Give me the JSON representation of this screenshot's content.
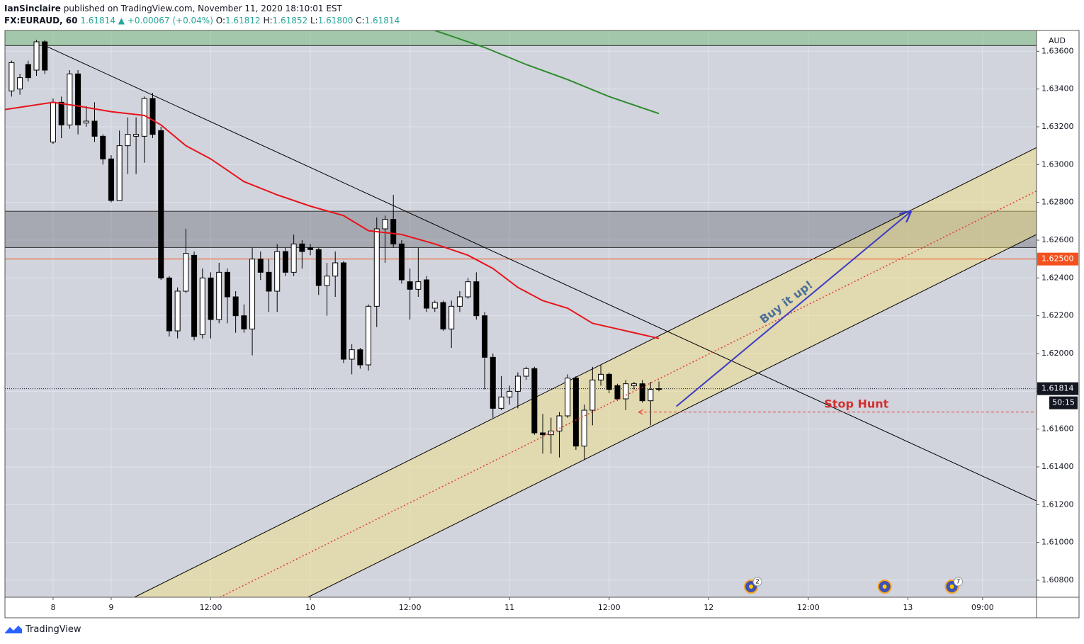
{
  "header": {
    "author": "IanSinclaire",
    "published": "published on TradingView.com, November 11, 2020 18:10:01 EST",
    "symbol": "FX:EURAUD, 60",
    "last": "1.61814",
    "arrow": "▲",
    "change": "+0.00067 (+0.04%)",
    "o_label": "O:",
    "o": "1.61812",
    "h_label": "H:",
    "h": "1.61852",
    "l_label": "L:",
    "l": "1.61800",
    "c_label": "C:",
    "c": "1.61814"
  },
  "chart_data": {
    "type": "candlestick",
    "axis_label": "AUD",
    "xlim": [
      -12.8,
      111.5
    ],
    "ylim": [
      1.6071,
      1.6371
    ],
    "grid": true,
    "xticks": [
      {
        "value": -7,
        "label": "8"
      },
      {
        "value": 0,
        "label": "9"
      },
      {
        "value": 12,
        "label": "12:00"
      },
      {
        "value": 24,
        "label": "10"
      },
      {
        "value": 36,
        "label": "12:00"
      },
      {
        "value": 48,
        "label": "11"
      },
      {
        "value": 60,
        "label": "12:00"
      },
      {
        "value": 72,
        "label": "12"
      },
      {
        "value": 84,
        "label": "12:00"
      },
      {
        "value": 96,
        "label": "13"
      },
      {
        "value": 105,
        "label": "09:00"
      }
    ],
    "yticks": [
      {
        "value": 1.608,
        "label": "1.60800"
      },
      {
        "value": 1.61,
        "label": "1.61000"
      },
      {
        "value": 1.612,
        "label": "1.61200"
      },
      {
        "value": 1.614,
        "label": "1.61400"
      },
      {
        "value": 1.616,
        "label": "1.61600"
      },
      {
        "value": 1.618,
        "label": "1.61800"
      },
      {
        "value": 1.62,
        "label": "1.62000"
      },
      {
        "value": 1.622,
        "label": "1.62200"
      },
      {
        "value": 1.624,
        "label": "1.62400"
      },
      {
        "value": 1.626,
        "label": "1.62600"
      },
      {
        "value": 1.628,
        "label": "1.62800"
      },
      {
        "value": 1.63,
        "label": "1.63000"
      },
      {
        "value": 1.632,
        "label": "1.63200"
      },
      {
        "value": 1.634,
        "label": "1.63400"
      },
      {
        "value": 1.636,
        "label": "1.63600"
      }
    ],
    "up_color": "#ffffff",
    "down_color": "#000000",
    "x": [
      -12,
      -11,
      -10,
      -9,
      -8,
      -7,
      -6,
      -5,
      -4,
      -3,
      -2,
      -1,
      0,
      1,
      2,
      3,
      4,
      5,
      6,
      7,
      8,
      9,
      10,
      11,
      12,
      13,
      14,
      15,
      16,
      17,
      18,
      19,
      20,
      21,
      22,
      23,
      24,
      25,
      26,
      27,
      28,
      29,
      30,
      31,
      32,
      33,
      34,
      35,
      36,
      37,
      38,
      39,
      40,
      41,
      42,
      43,
      44,
      45,
      46,
      47,
      48,
      49,
      50,
      51,
      52,
      53,
      54,
      55,
      56,
      57,
      58,
      59,
      60,
      61,
      62,
      63,
      64,
      65,
      66
    ],
    "open": [
      1.6339,
      1.634,
      1.6353,
      1.635,
      1.6365,
      1.6312,
      1.6333,
      1.6321,
      1.6348,
      1.6322,
      1.6323,
      1.6315,
      1.6303,
      1.6281,
      1.631,
      1.6315,
      1.6315,
      1.6335,
      1.6318,
      1.624,
      1.6212,
      1.6233,
      1.6252,
      1.621,
      1.624,
      1.6218,
      1.6243,
      1.623,
      1.622,
      1.6213,
      1.625,
      1.6243,
      1.6233,
      1.6254,
      1.6243,
      1.6258,
      1.6256,
      1.6255,
      1.6236,
      1.6241,
      1.6248,
      1.6197,
      1.6202,
      1.6194,
      1.6225,
      1.6266,
      1.6271,
      1.6258,
      1.6238,
      1.6234,
      1.6239,
      1.6224,
      1.6227,
      1.6213,
      1.6225,
      1.623,
      1.6238,
      1.622,
      1.6198,
      1.6171,
      1.6177,
      1.618,
      1.6188,
      1.6192,
      1.6158,
      1.6157,
      1.6159,
      1.6167,
      1.6187,
      1.6151,
      1.617,
      1.6186,
      1.6189,
      1.6183,
      1.6176,
      1.6183,
      1.6184,
      1.6175,
      1.61812
    ],
    "high": [
      1.6355,
      1.6348,
      1.6355,
      1.6366,
      1.6366,
      1.6335,
      1.6336,
      1.635,
      1.635,
      1.6331,
      1.6333,
      1.6316,
      1.6305,
      1.6318,
      1.6325,
      1.6325,
      1.6336,
      1.6338,
      1.632,
      1.6241,
      1.6235,
      1.6266,
      1.6254,
      1.6245,
      1.6243,
      1.6248,
      1.6245,
      1.6233,
      1.6226,
      1.6256,
      1.6254,
      1.625,
      1.6258,
      1.6256,
      1.6263,
      1.626,
      1.6258,
      1.6256,
      1.6248,
      1.6254,
      1.6249,
      1.6205,
      1.6203,
      1.6226,
      1.6272,
      1.6273,
      1.6284,
      1.626,
      1.6245,
      1.6256,
      1.6241,
      1.6228,
      1.6228,
      1.6228,
      1.6233,
      1.624,
      1.6243,
      1.6222,
      1.62,
      1.6188,
      1.6183,
      1.619,
      1.6193,
      1.6193,
      1.6168,
      1.6166,
      1.6169,
      1.6189,
      1.6188,
      1.6173,
      1.6193,
      1.6194,
      1.619,
      1.6184,
      1.6186,
      1.6185,
      1.6186,
      1.6185,
      1.61852
    ],
    "low": [
      1.6336,
      1.6337,
      1.6344,
      1.6347,
      1.6348,
      1.6311,
      1.6314,
      1.6319,
      1.6316,
      1.632,
      1.6312,
      1.63,
      1.628,
      1.6281,
      1.6295,
      1.6295,
      1.6301,
      1.6314,
      1.6239,
      1.6209,
      1.6208,
      1.6232,
      1.6207,
      1.6208,
      1.6208,
      1.6216,
      1.6216,
      1.6211,
      1.6211,
      1.6199,
      1.6239,
      1.6222,
      1.6222,
      1.6241,
      1.6241,
      1.6245,
      1.6252,
      1.6231,
      1.622,
      1.623,
      1.6195,
      1.6189,
      1.6192,
      1.6191,
      1.6214,
      1.6248,
      1.6256,
      1.6237,
      1.6218,
      1.623,
      1.6222,
      1.6222,
      1.6212,
      1.6203,
      1.6222,
      1.6229,
      1.6218,
      1.6181,
      1.6166,
      1.617,
      1.6173,
      1.6171,
      1.6186,
      1.6157,
      1.6147,
      1.6147,
      1.6145,
      1.6166,
      1.6149,
      1.6144,
      1.6162,
      1.6183,
      1.6179,
      1.6175,
      1.617,
      1.6181,
      1.6174,
      1.6162,
      1.618
    ],
    "close": [
      1.6354,
      1.6346,
      1.6346,
      1.6365,
      1.635,
      1.6333,
      1.6321,
      1.6348,
      1.6321,
      1.6323,
      1.6315,
      1.6303,
      1.6281,
      1.631,
      1.6316,
      1.6316,
      1.6335,
      1.6316,
      1.624,
      1.6212,
      1.6233,
      1.6253,
      1.6209,
      1.624,
      1.6218,
      1.6243,
      1.623,
      1.622,
      1.6213,
      1.625,
      1.6243,
      1.6233,
      1.6254,
      1.6243,
      1.6258,
      1.6254,
      1.6255,
      1.6236,
      1.6241,
      1.6248,
      1.6197,
      1.6202,
      1.6194,
      1.6225,
      1.6266,
      1.6271,
      1.6258,
      1.6239,
      1.6234,
      1.6238,
      1.6224,
      1.6227,
      1.6213,
      1.6225,
      1.623,
      1.6238,
      1.622,
      1.6198,
      1.6171,
      1.6177,
      1.618,
      1.6188,
      1.6192,
      1.6158,
      1.6157,
      1.6159,
      1.6167,
      1.6187,
      1.6151,
      1.617,
      1.6186,
      1.6189,
      1.6181,
      1.6176,
      1.6184,
      1.6184,
      1.6175,
      1.6181,
      1.61814
    ],
    "overlays": [
      {
        "color": "#e8141c",
        "x": [
          -13,
          -7,
          -4,
          0,
          4,
          6,
          9,
          12,
          16,
          20,
          24,
          28,
          31,
          35,
          39,
          43,
          46,
          49,
          52,
          55,
          58,
          61,
          66
        ],
        "values": [
          1.6329,
          1.6333,
          1.6331,
          1.6328,
          1.6326,
          1.6321,
          1.631,
          1.6303,
          1.6291,
          1.6284,
          1.6278,
          1.6273,
          1.6265,
          1.6263,
          1.6258,
          1.6252,
          1.6245,
          1.6235,
          1.6228,
          1.6224,
          1.6216,
          1.6213,
          1.6208
        ]
      },
      {
        "color": "#2e8b2e",
        "x": [
          39,
          45,
          50,
          55,
          60,
          66
        ],
        "values": [
          1.6371,
          1.6362,
          1.6353,
          1.6345,
          1.6336,
          1.6327
        ]
      }
    ],
    "zones": [
      {
        "y": [
          1.6363,
          1.6371
        ],
        "fill": "rgba(76,175,80,0.35)"
      },
      {
        "y": [
          1.62561,
          1.62753
        ],
        "fill": "rgba(90,90,100,0.35)"
      }
    ],
    "channel": {
      "fill": "rgba(245,225,120,0.45)",
      "upper": {
        "x": [
          2.8,
          111.5
        ],
        "y": [
          1.6071,
          1.6309
        ]
      },
      "lower": {
        "x": [
          23.7,
          111.5
        ],
        "y": [
          1.6071,
          1.6263
        ]
      }
    },
    "lines": [
      {
        "x": [
          -8,
          111.5
        ],
        "y": [
          1.6363,
          1.6122
        ],
        "color": "#000000",
        "dash": "none",
        "width": 1
      },
      {
        "x": [
          13.1,
          111.5
        ],
        "y": [
          1.6071,
          1.6286
        ],
        "color": "#e53935",
        "dash": "2 3",
        "width": 1.5
      },
      {
        "x": [
          68.1,
          96.3
        ],
        "y": [
          1.6172,
          1.6275
        ],
        "color": "#3c3cc4",
        "dash": "none",
        "width": 2,
        "head": "end"
      },
      {
        "x": [
          63.6,
          111.5
        ],
        "y": [
          1.6169,
          1.6169
        ],
        "color": "#e53935",
        "dash": "4 3",
        "width": 1,
        "head": "start"
      }
    ],
    "annotations": [
      {
        "text": "Buy it up!",
        "x": 81.4,
        "y": 1.6227,
        "color": "#4a6f9a",
        "rotate": -37
      },
      {
        "text": "Stop Hunt",
        "x": 89.8,
        "y": 1.6173,
        "color": "#d32f2f",
        "rotate": 0
      }
    ],
    "price_markers": [
      {
        "value": 1.625,
        "label": "1.62500",
        "color": "#f4511e",
        "style": "solid"
      },
      {
        "value": 1.61814,
        "label": "1.61814",
        "color": "#131722",
        "style": "dotted"
      }
    ],
    "countdown": "50:15",
    "events": [
      {
        "x": 77.1,
        "count": "2"
      },
      {
        "x": 93.2
      },
      {
        "x": 101.3,
        "count": "7"
      }
    ]
  },
  "footer": {
    "brand": "TradingView"
  }
}
